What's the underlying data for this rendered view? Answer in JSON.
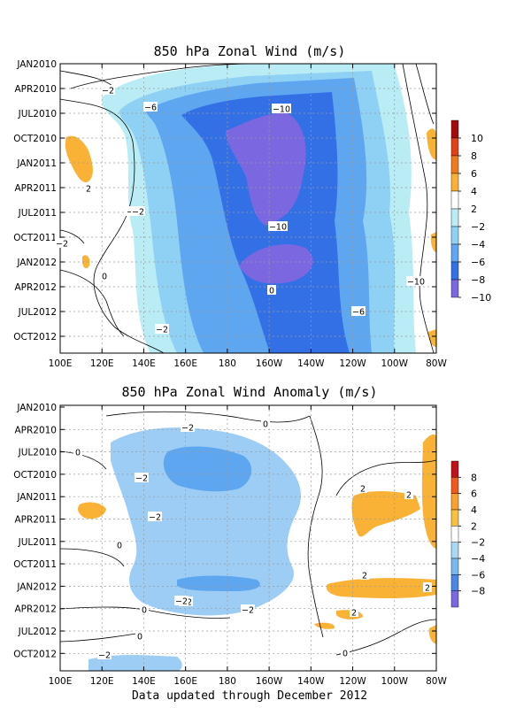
{
  "footer": "Data updated through December 2012",
  "chart_data": [
    {
      "type": "heatmap",
      "title": "850 hPa Zonal Wind (m/s)",
      "x_ticks": [
        "100E",
        "120E",
        "140E",
        "160E",
        "180",
        "160W",
        "140W",
        "120W",
        "100W",
        "80W"
      ],
      "y_ticks": [
        "JAN2010",
        "APR2010",
        "JUL2010",
        "OCT2010",
        "JAN2011",
        "APR2011",
        "JUL2011",
        "OCT2011",
        "JAN2012",
        "APR2012",
        "JUL2012",
        "OCT2012"
      ],
      "colorbar": {
        "labels": [
          "10",
          "8",
          "6",
          "4",
          "2",
          "−2",
          "−4",
          "−6",
          "−8",
          "−10"
        ],
        "colors": [
          "#a50a0a",
          "#e2401a",
          "#f07a1e",
          "#f9b236",
          "#ffffff",
          "#b9ecf5",
          "#8fd0f5",
          "#5fa6f0",
          "#3370e6",
          "#7b68e0"
        ]
      },
      "colors": {
        "pos": "#f9b236",
        "neg2": "#b9ecf5",
        "neg4": "#8fd0f5",
        "neg6": "#5fa6f0",
        "neg8": "#3370e6",
        "neg10": "#7b68e0"
      },
      "contour_labels": [
        "−2",
        "−6",
        "−10",
        "−2",
        "−10",
        "−2",
        "0",
        "0",
        "−10",
        "−2",
        "−2",
        "−6",
        "2"
      ]
    },
    {
      "type": "heatmap",
      "title": "850 hPa Zonal Wind Anomaly (m/s)",
      "x_ticks": [
        "100E",
        "120E",
        "140E",
        "160E",
        "180",
        "160W",
        "140W",
        "120W",
        "100W",
        "80W"
      ],
      "y_ticks": [
        "JAN2010",
        "APR2010",
        "JUL2010",
        "OCT2010",
        "JAN2011",
        "APR2011",
        "JUL2011",
        "OCT2011",
        "JAN2012",
        "APR2012",
        "JUL2012",
        "OCT2012"
      ],
      "colorbar": {
        "labels": [
          "8",
          "6",
          "4",
          "2",
          "−2",
          "−4",
          "−6",
          "−8"
        ],
        "colors": [
          "#c0101a",
          "#f05a1e",
          "#f9a232",
          "#f9c040",
          "#ffffff",
          "#a8d8f5",
          "#7ab8f0",
          "#4a88e4",
          "#7b68e0"
        ]
      },
      "colors": {
        "pos": "#f9b236",
        "neg2": "#9dcdf5",
        "neg4": "#5fa6f0"
      },
      "contour_labels": [
        "−2",
        "0",
        "0",
        "−2",
        "2",
        "2",
        "−2",
        "0",
        "−2",
        "2",
        "2",
        "−2",
        "−2",
        "2",
        "0",
        "0",
        "−2",
        "0"
      ]
    }
  ]
}
